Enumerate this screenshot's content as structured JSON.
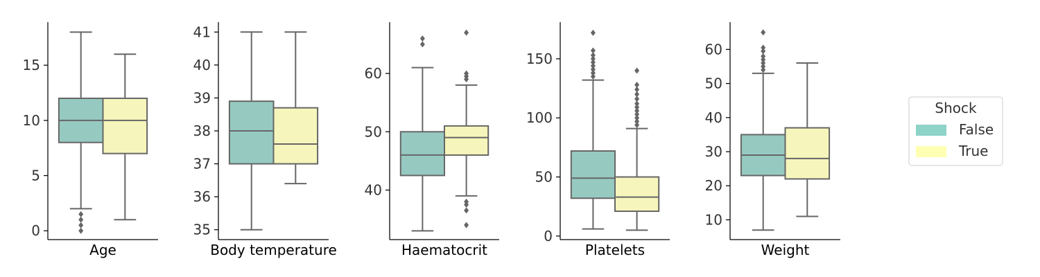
{
  "chart_data": [
    {
      "type": "boxplot",
      "xlabel": "Age",
      "ylim": [
        -0.8,
        18.9
      ],
      "yticks": [
        0,
        5,
        10,
        15
      ],
      "series": [
        {
          "name": "False",
          "whisker_low": 2,
          "q1": 8,
          "median": 10,
          "q3": 12,
          "whisker_high": 18,
          "outliers": [
            0,
            0.5,
            1,
            1.5
          ]
        },
        {
          "name": "True",
          "whisker_low": 1,
          "q1": 7,
          "median": 10,
          "q3": 12,
          "whisker_high": 16,
          "outliers": []
        }
      ]
    },
    {
      "type": "boxplot",
      "xlabel": "Body temperature",
      "ylim": [
        34.7,
        41.3
      ],
      "yticks": [
        35,
        36,
        37,
        38,
        39,
        40,
        41
      ],
      "series": [
        {
          "name": "False",
          "whisker_low": 35,
          "q1": 37,
          "median": 38,
          "q3": 38.9,
          "whisker_high": 41,
          "outliers": []
        },
        {
          "name": "True",
          "whisker_low": 36.4,
          "q1": 37,
          "median": 37.6,
          "q3": 38.7,
          "whisker_high": 41,
          "outliers": []
        }
      ]
    },
    {
      "type": "boxplot",
      "xlabel": "Haematocrit",
      "ylim": [
        31.5,
        68.8
      ],
      "yticks": [
        40,
        50,
        60
      ],
      "series": [
        {
          "name": "False",
          "whisker_low": 33,
          "q1": 42.5,
          "median": 46,
          "q3": 50,
          "whisker_high": 61,
          "outliers": [
            65,
            66
          ]
        },
        {
          "name": "True",
          "whisker_low": 39,
          "q1": 46,
          "median": 49,
          "q3": 51,
          "whisker_high": 58,
          "outliers": [
            34,
            36.5,
            37.5,
            38,
            59,
            59.5,
            60,
            67
          ]
        }
      ]
    },
    {
      "type": "boxplot",
      "xlabel": "Platelets",
      "ylim": [
        -3,
        181
      ],
      "yticks": [
        0,
        50,
        100,
        150
      ],
      "series": [
        {
          "name": "False",
          "whisker_low": 6,
          "q1": 32,
          "median": 49,
          "q3": 72,
          "whisker_high": 132,
          "outliers": [
            135,
            138,
            141,
            144,
            147,
            150,
            153,
            157,
            172
          ]
        },
        {
          "name": "True",
          "whisker_low": 5,
          "q1": 21,
          "median": 33,
          "q3": 50,
          "whisker_high": 91,
          "outliers": [
            94,
            97,
            100,
            103,
            106,
            109,
            112,
            116,
            120,
            124,
            128,
            140
          ]
        }
      ]
    },
    {
      "type": "boxplot",
      "xlabel": "Weight",
      "ylim": [
        4.2,
        68
      ],
      "yticks": [
        10,
        20,
        30,
        40,
        50,
        60
      ],
      "series": [
        {
          "name": "False",
          "whisker_low": 7,
          "q1": 23,
          "median": 29,
          "q3": 35,
          "whisker_high": 53,
          "outliers": [
            54,
            55,
            56,
            57,
            58,
            59.5,
            60.5,
            65
          ]
        },
        {
          "name": "True",
          "whisker_low": 11,
          "q1": 22,
          "median": 28,
          "q3": 37,
          "whisker_high": 56,
          "outliers": []
        }
      ]
    }
  ],
  "legend": {
    "title": "Shock",
    "position": "right",
    "entries": [
      {
        "label": "False",
        "color": "#8dd3c7"
      },
      {
        "label": "True",
        "color": "#ffffb3"
      }
    ]
  },
  "colors": {
    "box_fill": [
      "#96cac1",
      "#f6f6bc"
    ],
    "line": "#666666",
    "axis": "#000000",
    "tick_text": "#333333"
  }
}
